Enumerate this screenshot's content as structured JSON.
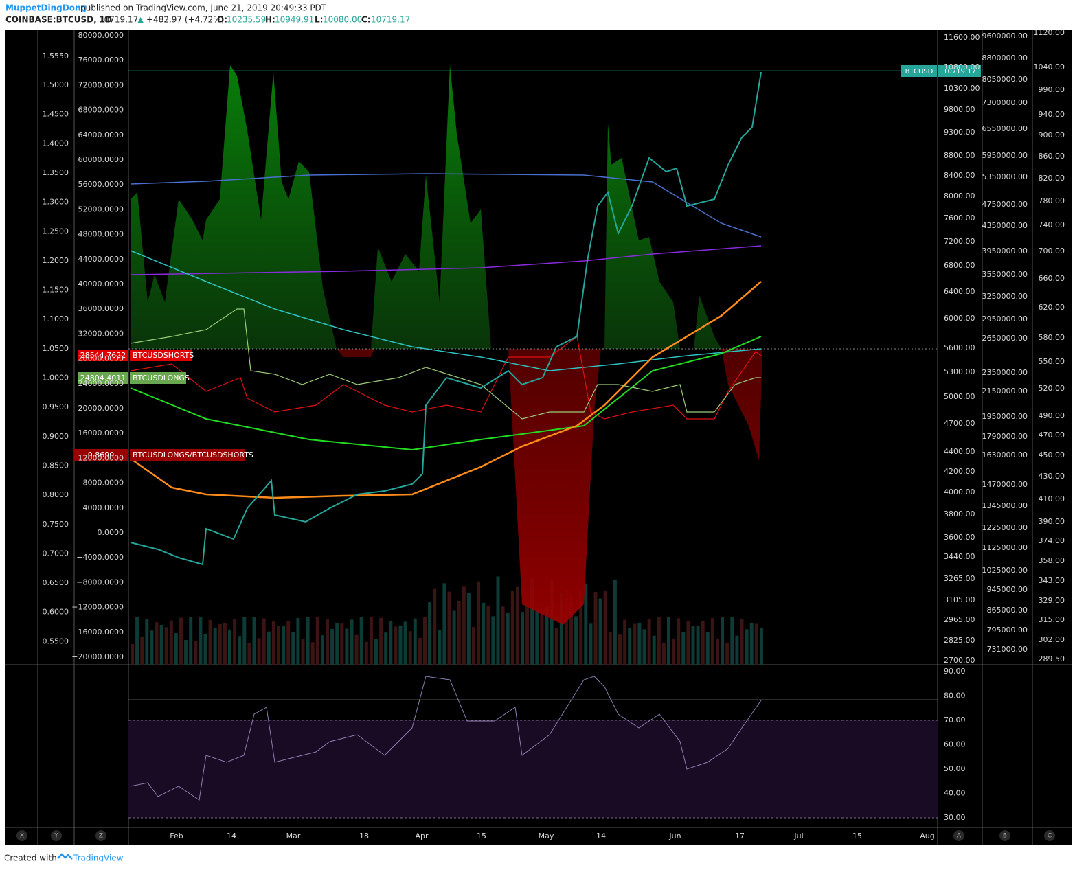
{
  "header": {
    "author": "MuppetDingDong",
    "published": "published on TradingView.com, June 21, 2019 20:49:33 PDT",
    "symbol": "COINBASE:BTCUSD, 1D",
    "last": "10719.17",
    "change": "+482.97 (+4.72%)",
    "o_label": "O:",
    "o": "10235.59",
    "h_label": "H:",
    "h": "10949.91",
    "l_label": "L:",
    "l": "10080.00",
    "c_label": "C:",
    "c": "10719.17"
  },
  "axes": {
    "ratio": [
      "1.5550",
      "1.5000",
      "1.4500",
      "1.4000",
      "1.3500",
      "1.3000",
      "1.2500",
      "1.2000",
      "1.1500",
      "1.1000",
      "1.0500",
      "1.0000",
      "0.9500",
      "0.9000",
      "0.8500",
      "0.8000",
      "0.7500",
      "0.7000",
      "0.6500",
      "0.6000",
      "0.5500"
    ],
    "positions": [
      "80000.0000",
      "76000.0000",
      "72000.0000",
      "68000.0000",
      "64000.0000",
      "60000.0000",
      "56000.0000",
      "52000.0000",
      "48000.0000",
      "44000.0000",
      "40000.0000",
      "36000.0000",
      "32000.0000",
      "28000.0000",
      "24000.0000",
      "20000.0000",
      "16000.0000",
      "12000.0000",
      "8000.0000",
      "4000.0000",
      "0.0000",
      "−4000.0000",
      "−8000.0000",
      "−12000.0000",
      "−16000.0000",
      "−20000.0000"
    ],
    "price": [
      "11600.00",
      "10800.00",
      "10300.00",
      "9800.00",
      "9300.00",
      "8800.00",
      "8400.00",
      "8000.00",
      "7600.00",
      "7200.00",
      "6800.00",
      "6400.00",
      "6000.00",
      "5600.00",
      "5300.00",
      "5000.00",
      "4700.00",
      "4400.00",
      "4200.00",
      "4000.00",
      "3800.00",
      "3600.00",
      "3440.00",
      "3265.00",
      "3105.00",
      "2965.00",
      "2825.00",
      "2700.00"
    ],
    "volume": [
      "9600000.00",
      "8800000.00",
      "8050000.00",
      "7300000.00",
      "6550000.00",
      "5950000.00",
      "5350000.00",
      "4750000.00",
      "4350000.00",
      "3950000.00",
      "3550000.00",
      "3250000.00",
      "2950000.00",
      "2650000.00",
      "2350000.00",
      "2150000.00",
      "1950000.00",
      "1790000.00",
      "1630000.00",
      "1470000.00",
      "1345000.00",
      "1225000.00",
      "1125000.00",
      "1025000.00",
      "945000.00",
      "865000.00",
      "795000.00",
      "731000.00"
    ],
    "third": [
      "1120.00",
      "1040.00",
      "990.00",
      "940.00",
      "900.00",
      "860.00",
      "820.00",
      "780.00",
      "740.00",
      "700.00",
      "660.00",
      "620.00",
      "580.00",
      "550.00",
      "520.00",
      "490.00",
      "470.00",
      "450.00",
      "430.00",
      "410.00",
      "390.00",
      "374.00",
      "358.00",
      "343.00",
      "329.00",
      "315.00",
      "302.00",
      "289.50"
    ],
    "rsi": [
      "90.00",
      "80.00",
      "70.00",
      "60.00",
      "50.00",
      "40.00",
      "30.00"
    ],
    "time": [
      "Feb",
      "14",
      "Mar",
      "18",
      "Apr",
      "15",
      "May",
      "14",
      "Jun",
      "17",
      "Jul",
      "15",
      "Aug"
    ]
  },
  "badges": {
    "symbol": "BTCUSD",
    "symbol_value": "10719.17",
    "shorts_value": "28544.7622",
    "shorts": "BTCUSDSHORTS",
    "longs_value": "24804.4011",
    "longs": "BTCUSDLONGS",
    "ratio_value": "0.8690",
    "ratio": "BTCUSDLONGS/BTCUSDSHORTS"
  },
  "corners": [
    "X",
    "Y",
    "Z",
    "A",
    "B",
    "C"
  ],
  "footer": {
    "created": "Created with",
    "brand": "TradingView"
  }
}
